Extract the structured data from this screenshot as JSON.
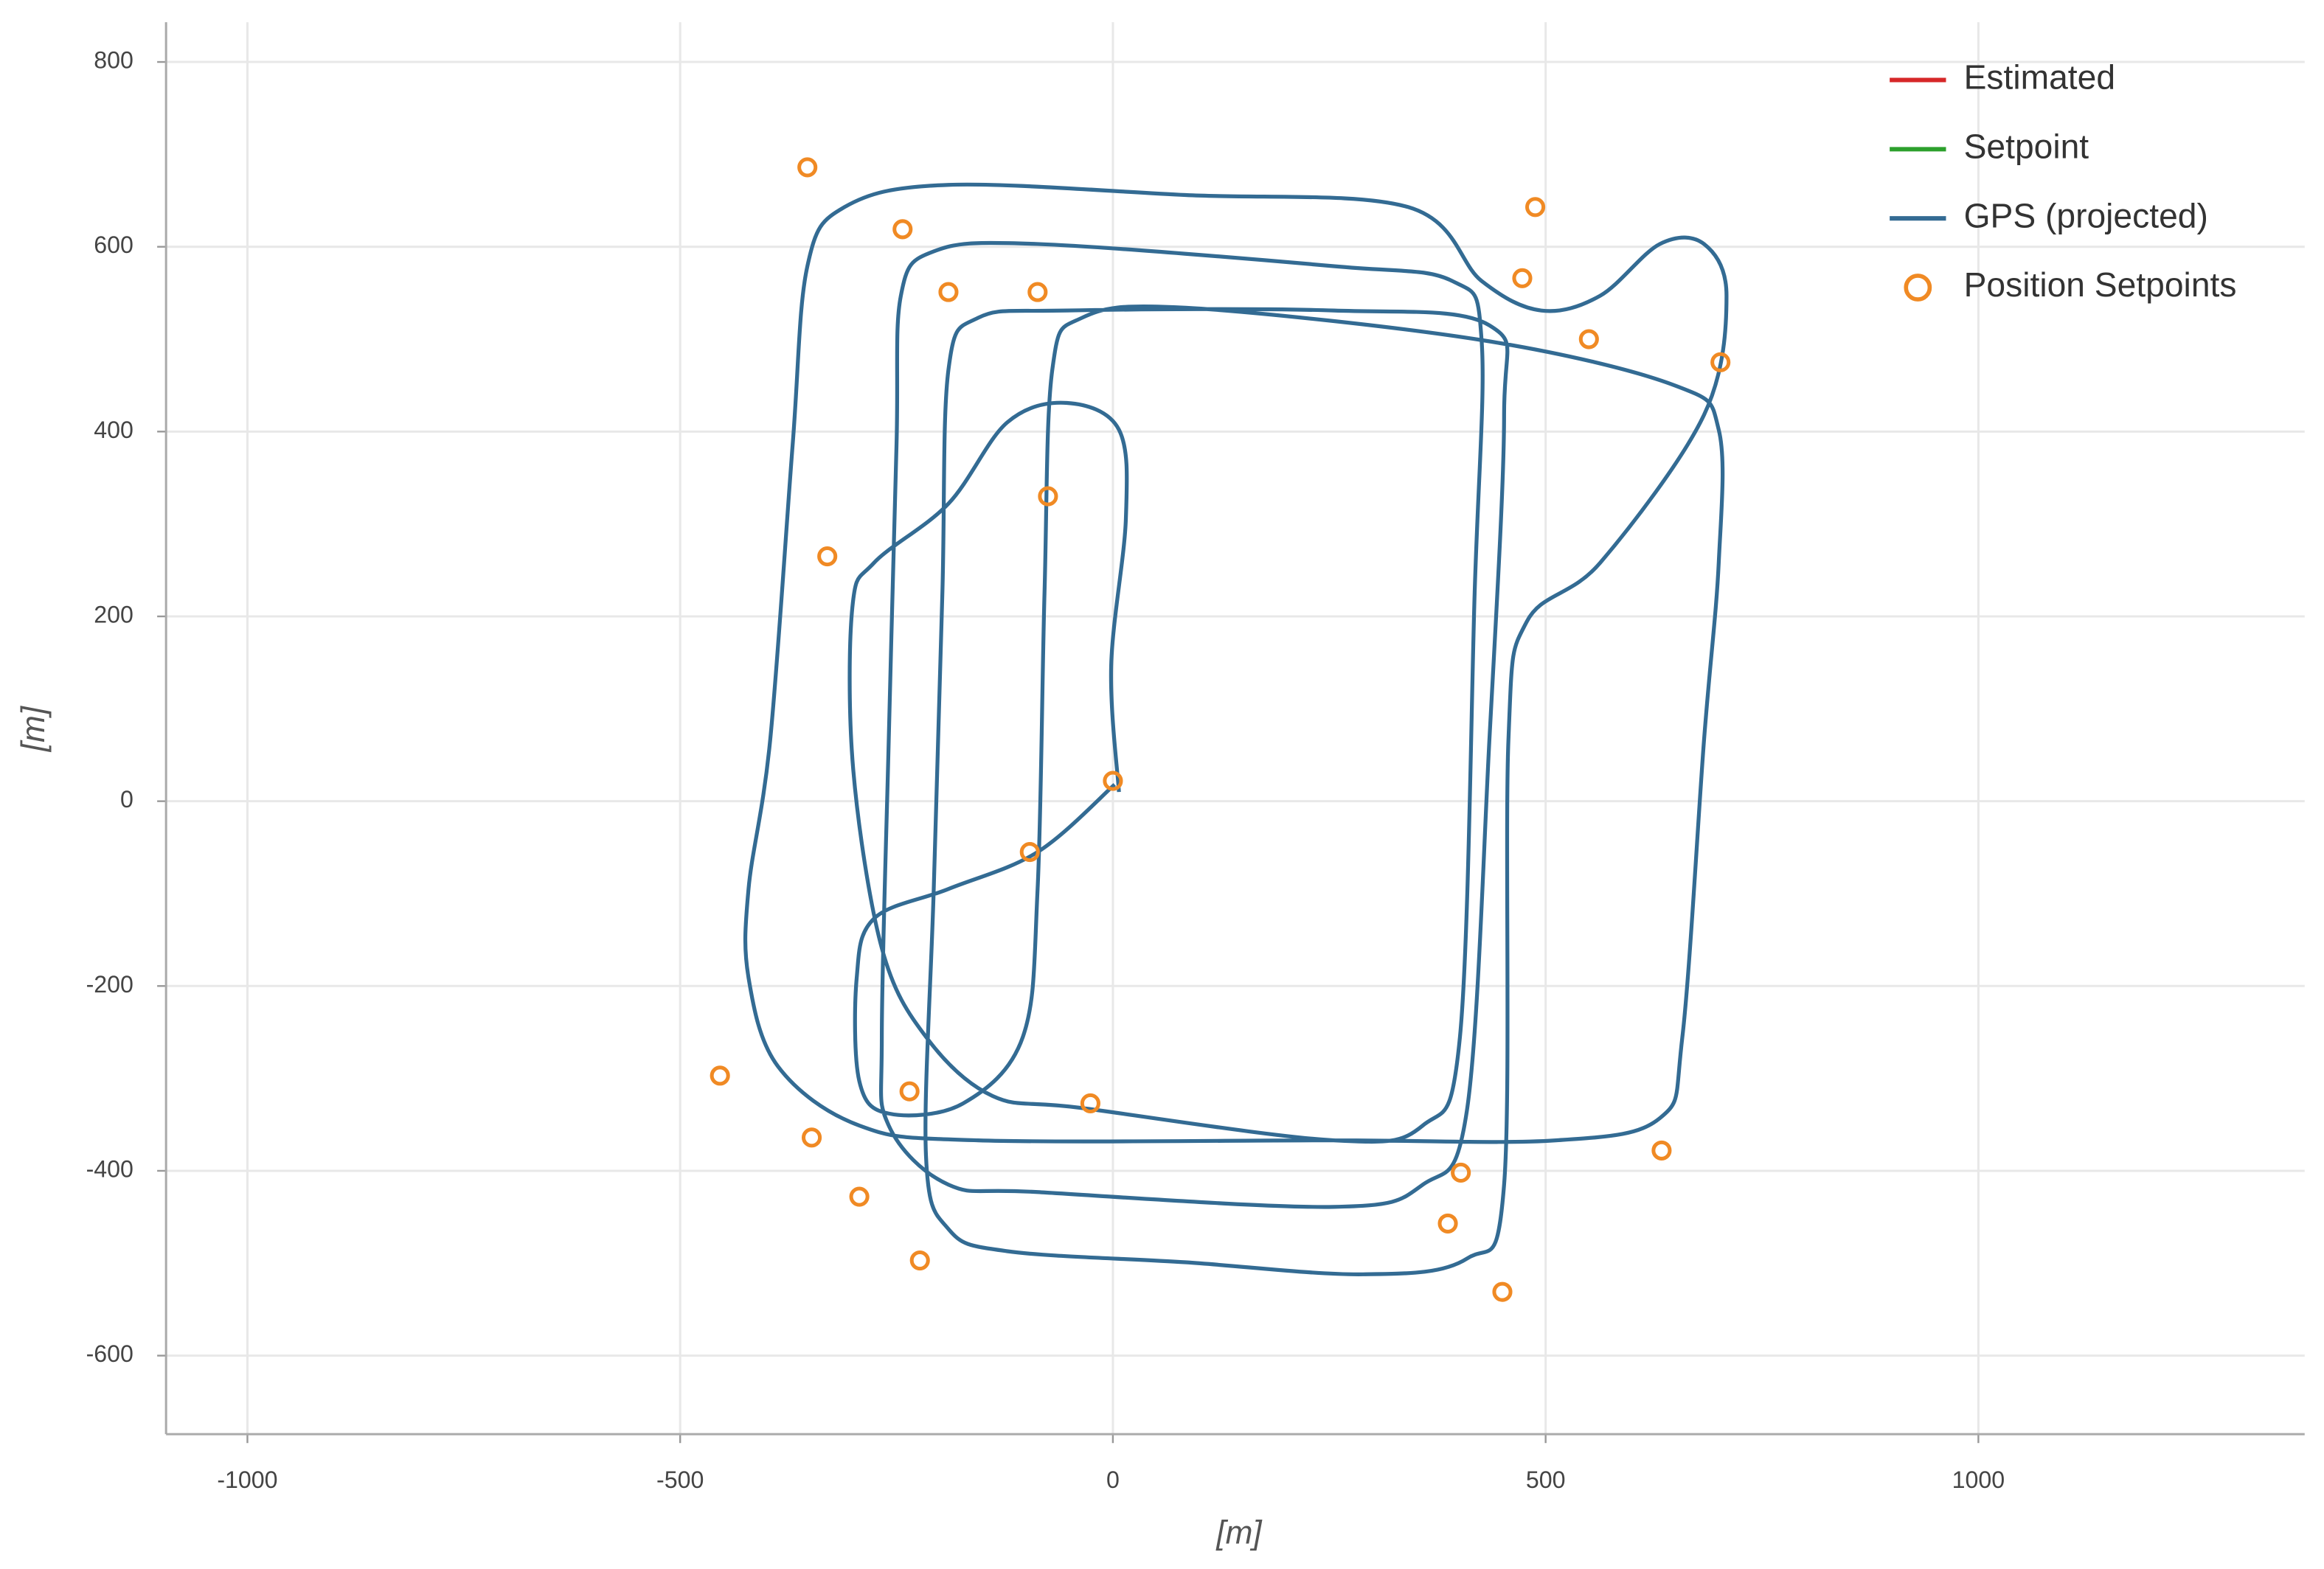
{
  "chart_data": {
    "type": "line",
    "xlabel": "[m]",
    "ylabel": "[m]",
    "xlim": [
      -1094,
      1377
    ],
    "ylim": [
      -685,
      843
    ],
    "xticks": [
      -1000,
      -500,
      0,
      500,
      1000
    ],
    "yticks": [
      -600,
      -400,
      -200,
      0,
      200,
      400,
      600,
      800
    ],
    "grid": true,
    "legend": "upper right",
    "series": [
      {
        "name": "Estimated",
        "type": "line",
        "color": "#d62728",
        "x": [],
        "values": []
      },
      {
        "name": "Setpoint",
        "type": "line",
        "color": "#2ca02c",
        "x": [],
        "values": []
      },
      {
        "name": "GPS (projected)",
        "type": "line",
        "color": "#336b93",
        "x": [
          7,
          -2,
          15,
          7,
          -53,
          -122,
          -190,
          -276,
          -301,
          -300,
          -267,
          -216,
          -139,
          -36,
          255,
          358,
          401,
          418,
          426,
          392,
          255,
          -87,
          -207,
          -245,
          -250,
          -259,
          -267,
          -259,
          -190,
          -87,
          255,
          358,
          409,
          435,
          452,
          435,
          255,
          -53,
          -156,
          -190,
          -197,
          -207,
          -216,
          -190,
          -122,
          84,
          289,
          409,
          452,
          457,
          478,
          563,
          683,
          709,
          683,
          632,
          563,
          495,
          426,
          341,
          84,
          -190,
          -310,
          -353,
          -370,
          -396,
          -421,
          -421,
          -387,
          -293,
          -156,
          255,
          512,
          632,
          658,
          683,
          700,
          700,
          649,
          426,
          84,
          -36,
          -70,
          -79,
          -87,
          -104,
          -173,
          -259,
          -293,
          -296,
          -276,
          -190,
          -87,
          2
        ],
        "values": [
          10,
          146,
          306,
          402,
          431,
          410,
          322,
          258,
          210,
          34,
          -159,
          -255,
          -319,
          -332,
          -367,
          -351,
          -255,
          226,
          499,
          563,
          579,
          603,
          595,
          547,
          386,
          66,
          -255,
          -351,
          -415,
          -423,
          -439,
          -415,
          -335,
          66,
          418,
          515,
          531,
          531,
          523,
          467,
          226,
          -95,
          -383,
          -463,
          -487,
          -499,
          -512,
          -495,
          -415,
          66,
          194,
          258,
          418,
          547,
          603,
          603,
          547,
          531,
          563,
          643,
          656,
          667,
          643,
          579,
          386,
          66,
          -95,
          -191,
          -287,
          -351,
          -367,
          -367,
          -367,
          -343,
          -255,
          66,
          258,
          402,
          450,
          499,
          534,
          523,
          467,
          226,
          -95,
          -255,
          -327,
          -338,
          -303,
          -191,
          -127,
          -95,
          -55,
          18
        ]
      },
      {
        "name": "Position Setpoints",
        "type": "scatter",
        "color": "#f08a24",
        "x": [
          -353,
          -243,
          -190,
          -87,
          488,
          473,
          550,
          702,
          -75,
          -330,
          0,
          -96,
          -454,
          -235,
          -26,
          -348,
          634,
          402,
          -293,
          387,
          -223,
          450
        ],
        "values": [
          686,
          619,
          551,
          551,
          643,
          566,
          500,
          475,
          330,
          265,
          22,
          -55,
          -297,
          -314,
          -327,
          -364,
          -378,
          -402,
          -428,
          -457,
          -497,
          -531
        ]
      }
    ]
  }
}
